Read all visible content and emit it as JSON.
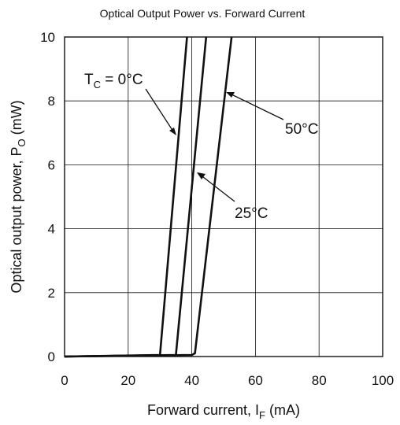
{
  "chart_data": {
    "type": "line",
    "title": "Optical Output Power vs. Forward Current",
    "xlabel": {
      "main": "Forward current,  I",
      "sub": "F",
      "unit": "  (mA)"
    },
    "ylabel": {
      "main": "Optical output power,  P",
      "sub": "O",
      "unit": "  (mW)"
    },
    "xlim": [
      0,
      100
    ],
    "ylim": [
      0,
      10
    ],
    "xticks": [
      0,
      20,
      40,
      60,
      80,
      100
    ],
    "yticks": [
      0,
      2,
      4,
      6,
      8,
      10
    ],
    "x_tick_labels": [
      "0",
      "20",
      "40",
      "60",
      "80",
      "100"
    ],
    "y_tick_labels": [
      "0",
      "2",
      "4",
      "6",
      "8",
      "10"
    ],
    "grid": true,
    "series": [
      {
        "name": "T_C = 0°C",
        "points": [
          [
            0,
            0
          ],
          [
            30,
            0.05
          ],
          [
            38.5,
            10
          ]
        ]
      },
      {
        "name": "25°C",
        "points": [
          [
            0,
            0
          ],
          [
            35,
            0.05
          ],
          [
            44.5,
            10
          ]
        ]
      },
      {
        "name": "50°C",
        "points": [
          [
            0,
            0
          ],
          [
            40,
            0.05
          ],
          [
            41,
            0.1
          ],
          [
            52.5,
            10
          ]
        ]
      }
    ],
    "annotations": {
      "t0": {
        "main": "T",
        "sub": "C",
        "rest": " = 0°C"
      },
      "t25": "25°C",
      "t50": "50°C"
    }
  }
}
